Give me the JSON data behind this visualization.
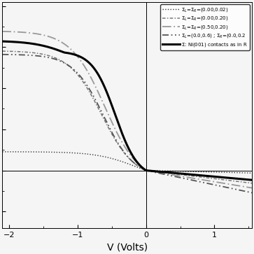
{
  "title": "",
  "xlabel": "V (Volts)",
  "ylabel": "",
  "xlim": [
    -2.1,
    1.55
  ],
  "ylim": [
    -0.28,
    0.82
  ],
  "x_ticks": [
    -2,
    -1,
    0,
    1
  ],
  "background_color": "#f5f5f5",
  "legend_entries": [
    "$\\Sigma_L$=$\\Sigma_R$=(0.00,0.02)",
    "$\\Sigma_L$=$\\Sigma_R$=(0.00,0.20)",
    "$\\Sigma_L$=$\\Sigma_R$=(0.50,0.20)",
    "$\\Sigma_L$=(0.0,0.6) ; $\\Sigma_R$=(0.0,0.2",
    "$\\Sigma$: Ni(001) contacts as in R"
  ]
}
